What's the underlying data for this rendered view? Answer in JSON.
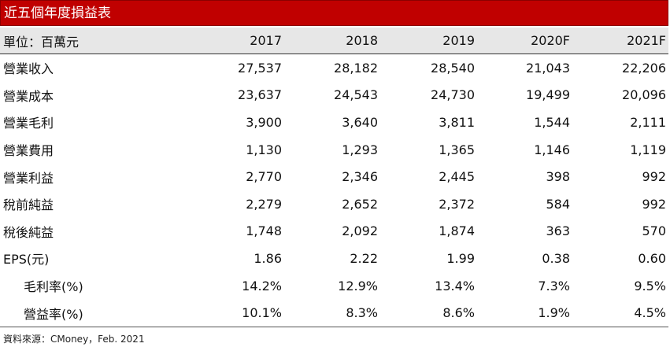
{
  "title": "近五個年度損益表",
  "header": {
    "unit_label": "單位：百萬元",
    "years": [
      "2017",
      "2018",
      "2019",
      "2020F",
      "2021F"
    ]
  },
  "rows": [
    {
      "label": "營業收入",
      "values": [
        "27,537",
        "28,182",
        "28,540",
        "21,043",
        "22,206"
      ]
    },
    {
      "label": "營業成本",
      "values": [
        "23,637",
        "24,543",
        "24,730",
        "19,499",
        "20,096"
      ]
    },
    {
      "label": "營業毛利",
      "values": [
        "3,900",
        "3,640",
        "3,811",
        "1,544",
        "2,111"
      ]
    },
    {
      "label": "營業費用",
      "values": [
        "1,130",
        "1,293",
        "1,365",
        "1,146",
        "1,119"
      ]
    },
    {
      "label": "營業利益",
      "values": [
        "2,770",
        "2,346",
        "2,445",
        "398",
        "992"
      ]
    },
    {
      "label": "稅前純益",
      "values": [
        "2,279",
        "2,652",
        "2,372",
        "584",
        "992"
      ]
    },
    {
      "label": "稅後純益",
      "values": [
        "1,748",
        "2,092",
        "1,874",
        "363",
        "570"
      ]
    },
    {
      "label": "EPS(元)",
      "values": [
        "1.86",
        "2.22",
        "1.99",
        "0.38",
        "0.60"
      ]
    },
    {
      "label": "毛利率(%)",
      "values": [
        "14.2%",
        "12.9%",
        "13.4%",
        "7.3%",
        "9.5%"
      ]
    },
    {
      "label": "營益率(%)",
      "values": [
        "10.1%",
        "8.3%",
        "8.6%",
        "1.9%",
        "4.5%"
      ]
    }
  ],
  "source": "資料來源：CMoney，Feb. 2021",
  "colors": {
    "title_bar": "#c00000",
    "header_bg": "#e7e7e7",
    "title_text": "#ffffff"
  }
}
